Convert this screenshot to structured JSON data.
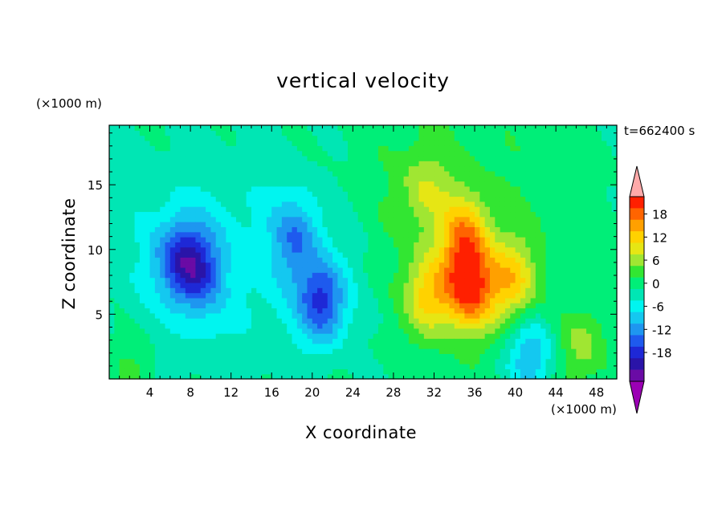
{
  "chart_data": {
    "type": "heatmap",
    "title": "vertical velocity",
    "xlabel": "X coordinate",
    "ylabel": "Z coordinate",
    "x_unit": "(×1000 m)",
    "y_unit": "(×1000 m)",
    "time_label": "t=662400 s",
    "xlim": [
      0,
      50
    ],
    "ylim": [
      0,
      19.6
    ],
    "x_ticks": [
      4,
      8,
      12,
      16,
      20,
      24,
      28,
      32,
      36,
      40,
      44,
      48
    ],
    "y_ticks": [
      5,
      10,
      15
    ],
    "colorbar": {
      "tick_labels": [
        "18",
        "12",
        "6",
        "0",
        "-6",
        "-12",
        "-18"
      ],
      "tick_values": [
        18,
        12,
        6,
        0,
        -6,
        -12,
        -18
      ],
      "levels": [
        -21,
        -18,
        -15,
        -12,
        -9,
        -6,
        -3,
        0,
        3,
        6,
        9,
        12,
        15,
        18,
        21
      ],
      "colors": [
        "#6a0ba5",
        "#2a14a8",
        "#1e28d6",
        "#1e5aee",
        "#1e96f0",
        "#14c8f0",
        "#00f5f0",
        "#00e6b4",
        "#00ee78",
        "#32e632",
        "#a0e632",
        "#e6e614",
        "#ffd200",
        "#ffa000",
        "#ff6400",
        "#ff2000"
      ],
      "under_color": "#9b00b4",
      "over_color": "#ffaaaa"
    },
    "features": [
      {
        "x": 8.5,
        "z": 8.5,
        "w": -13
      },
      {
        "x": 6.5,
        "z": 9.5,
        "w": -9
      },
      {
        "x": 21.0,
        "z": 6.0,
        "w": -15
      },
      {
        "x": 18.5,
        "z": 11.0,
        "w": -9
      },
      {
        "x": 35.5,
        "z": 7.0,
        "w": 18
      },
      {
        "x": 35.0,
        "z": 11.0,
        "w": 13
      },
      {
        "x": 31.5,
        "z": 6.5,
        "w": 12
      },
      {
        "x": 39.5,
        "z": 7.5,
        "w": 12
      },
      {
        "x": 31.0,
        "z": 14.5,
        "w": 6
      },
      {
        "x": 46.5,
        "z": 2.5,
        "w": 7
      },
      {
        "x": 2.5,
        "z": 1.0,
        "w": 4
      },
      {
        "x": 41.5,
        "z": 2.0,
        "w": -10
      }
    ]
  }
}
